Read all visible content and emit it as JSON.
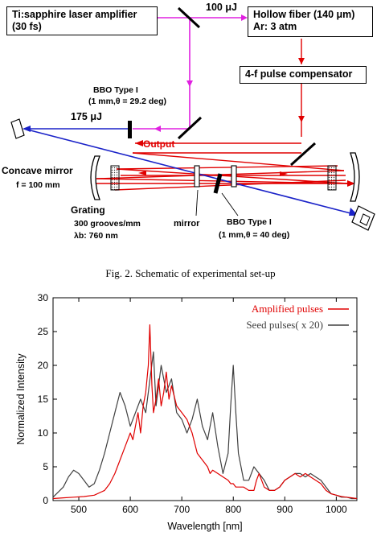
{
  "diagram": {
    "amplifier": {
      "line1": "Ti:sapphire laser amplifier",
      "line2": "(30 fs)"
    },
    "pulse_100": "100 μJ",
    "fiber": {
      "line1": "Hollow fiber (140 μm)",
      "line2": "Ar: 3 atm"
    },
    "compensator": "4-f pulse compensator",
    "bbo1": {
      "line1": "BBO Type I",
      "line2": "(1 mm,θ = 29.2 deg)"
    },
    "pulse_175": "175 μJ",
    "output": "Output",
    "concave": {
      "line1": "Concave mirror",
      "line2": "f = 100 mm"
    },
    "grating": {
      "line1": "Grating",
      "line2": "300 grooves/mm",
      "line3": "λb: 760 nm"
    },
    "mirror": "mirror",
    "bbo2": {
      "line1": "BBO Type I",
      "line2": "(1 mm,θ = 40 deg)"
    }
  },
  "caption": "Fig. 2. Schematic of experimental set-up",
  "colors": {
    "magenta": "#e020e0",
    "red": "#e00000",
    "blue": "#1a22c8",
    "grey": "#404040"
  },
  "chart_data": {
    "type": "line",
    "xlabel": "Wavelength [nm]",
    "ylabel": "Normalized Intensity",
    "xlim": [
      450,
      1040
    ],
    "ylim": [
      0,
      30
    ],
    "xticks": [
      500,
      600,
      700,
      800,
      900,
      1000
    ],
    "yticks": [
      0,
      5,
      10,
      15,
      20,
      25,
      30
    ],
    "legend_position": "top-right",
    "grid": false,
    "series": [
      {
        "name": "Amplified pulses",
        "color": "#e00000",
        "x": [
          450,
          470,
          490,
          510,
          530,
          550,
          560,
          570,
          580,
          590,
          600,
          605,
          610,
          615,
          620,
          625,
          630,
          635,
          638,
          642,
          645,
          650,
          655,
          660,
          665,
          670,
          675,
          680,
          690,
          700,
          710,
          720,
          730,
          740,
          750,
          755,
          760,
          770,
          780,
          790,
          795,
          800,
          805,
          810,
          820,
          830,
          840,
          845,
          850,
          855,
          860,
          870,
          880,
          890,
          900,
          910,
          920,
          930,
          940,
          950,
          960,
          970,
          980,
          990,
          1000,
          1010,
          1020,
          1030,
          1040
        ],
        "y": [
          0.3,
          0.4,
          0.5,
          0.6,
          0.8,
          1.5,
          2.5,
          4,
          6,
          8,
          10,
          9,
          11,
          13,
          10,
          14,
          16,
          20,
          26,
          17,
          13,
          15,
          18,
          14,
          16,
          19,
          15,
          17,
          14,
          13,
          12,
          10,
          7,
          6,
          5,
          4,
          4.5,
          4,
          3.5,
          3,
          2.5,
          2.5,
          2,
          2,
          2,
          1.5,
          1.5,
          3,
          4,
          3,
          2,
          1.5,
          1.5,
          2,
          3,
          3.5,
          4,
          3.5,
          4,
          3.5,
          3,
          2.5,
          1.5,
          1,
          0.8,
          0.6,
          0.5,
          0.4,
          0.3
        ]
      },
      {
        "name": "Seed pulses( x 20)",
        "color": "#404040",
        "x": [
          450,
          470,
          480,
          490,
          500,
          510,
          520,
          530,
          540,
          550,
          560,
          570,
          580,
          590,
          600,
          610,
          620,
          630,
          640,
          645,
          650,
          655,
          660,
          670,
          680,
          690,
          700,
          710,
          720,
          730,
          740,
          750,
          760,
          770,
          780,
          790,
          795,
          800,
          805,
          810,
          820,
          830,
          840,
          850,
          860,
          870,
          880,
          890,
          900,
          910,
          920,
          930,
          940,
          950,
          960,
          970,
          980,
          990,
          1000,
          1010,
          1020,
          1030,
          1040
        ],
        "y": [
          0.5,
          2,
          3.5,
          4.5,
          4,
          3,
          2,
          2.5,
          4.5,
          7,
          10,
          13,
          16,
          14,
          11,
          13,
          15,
          13,
          19,
          22,
          14,
          17,
          20,
          16,
          18,
          13,
          12,
          10,
          12,
          15,
          11,
          9,
          13,
          8,
          4,
          7,
          14,
          20,
          13,
          7,
          3,
          3,
          5,
          4,
          3,
          1.5,
          1.5,
          2,
          3,
          3.5,
          4,
          4,
          3.5,
          4,
          3.5,
          3,
          2,
          1,
          0.8,
          0.5,
          0.5,
          0.3,
          0.3
        ]
      }
    ]
  }
}
